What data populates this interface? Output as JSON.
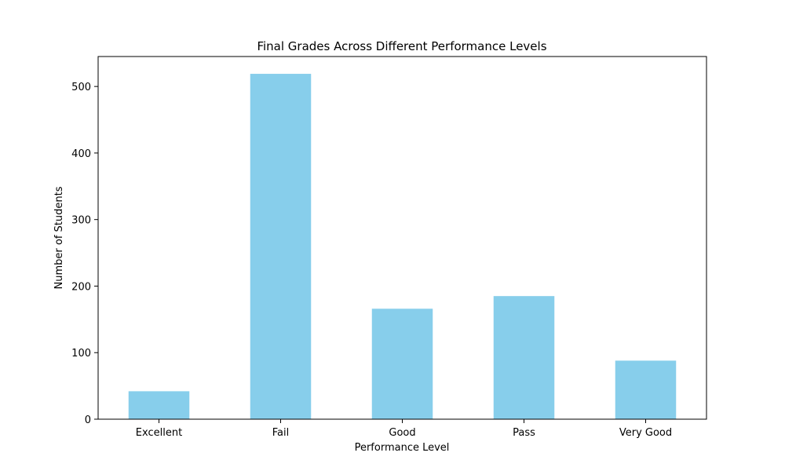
{
  "chart_data": {
    "type": "bar",
    "title": "Final Grades Across Different Performance Levels",
    "xlabel": "Performance Level",
    "ylabel": "Number of Students",
    "categories": [
      "Excellent",
      "Fail",
      "Good",
      "Pass",
      "Very Good"
    ],
    "values": [
      42,
      519,
      166,
      185,
      88
    ],
    "ylim": [
      0,
      545
    ],
    "yticks": [
      0,
      100,
      200,
      300,
      400,
      500
    ],
    "grid": false,
    "legend": "none",
    "bar_color": "#87ceeb"
  }
}
